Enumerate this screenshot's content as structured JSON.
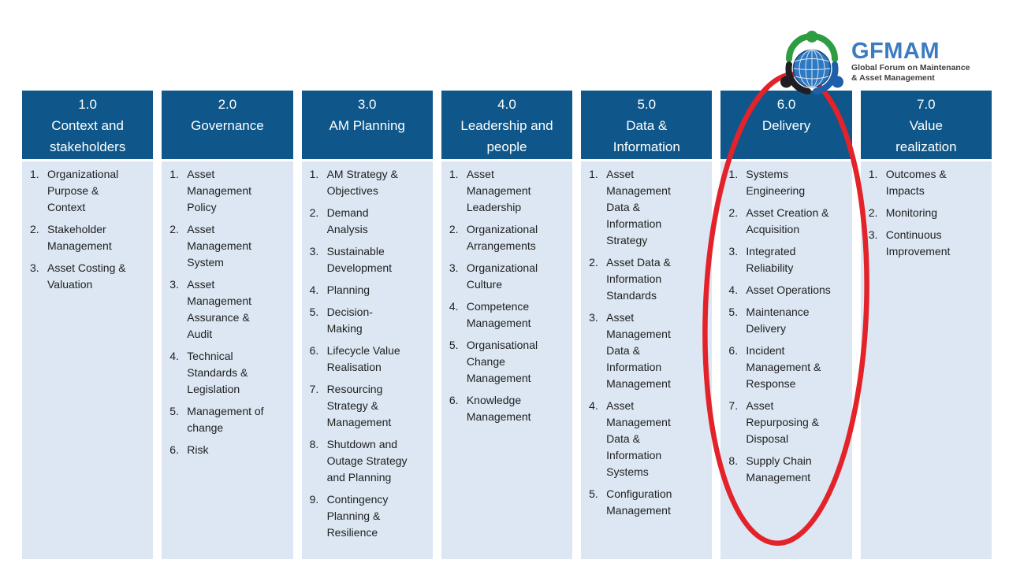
{
  "colors": {
    "header_bg": "#0F578A",
    "body_bg": "#DCE7F3",
    "header_text": "#FFFFFF",
    "item_text": "#1F1F1F",
    "annotation_red": "#E3222A",
    "brand_blue": "#3B7CC0",
    "tagline_gray": "#3F3F42",
    "globe_blue": "#2F78C2",
    "figure_green": "#2E9C41",
    "figure_dark": "#1F1F23",
    "figure_blue": "#1D5FA9"
  },
  "logo": {
    "brand": "GFMAM",
    "tagline_lines": [
      "Global Forum on Maintenance",
      "& Asset Management"
    ]
  },
  "annotation": {
    "shape": "ellipse",
    "circled_section": "6.0 Delivery"
  },
  "framework": {
    "sections": [
      {
        "number": "1.0",
        "title_lines": [
          "Context and",
          "stakeholders"
        ],
        "items": [
          {
            "num": "1.",
            "lines": [
              "Organizational",
              "Purpose &",
              "Context"
            ]
          },
          {
            "num": "2.",
            "lines": [
              "Stakeholder",
              "Management"
            ]
          },
          {
            "num": "3.",
            "lines": [
              "Asset Costing &",
              "Valuation"
            ]
          }
        ]
      },
      {
        "number": "2.0",
        "title_lines": [
          "Governance"
        ],
        "items": [
          {
            "num": "1.",
            "lines": [
              "Asset",
              "Management",
              "Policy"
            ]
          },
          {
            "num": "2.",
            "lines": [
              "Asset",
              "Management",
              "System"
            ]
          },
          {
            "num": "3.",
            "lines": [
              "Asset",
              "Management",
              "Assurance &",
              "Audit"
            ]
          },
          {
            "num": "4.",
            "lines": [
              "Technical",
              "Standards &",
              "Legislation"
            ]
          },
          {
            "num": "5.",
            "lines": [
              "Management of",
              "change"
            ]
          },
          {
            "num": "6.",
            "lines": [
              "Risk"
            ]
          }
        ]
      },
      {
        "number": "3.0",
        "title_lines": [
          "AM Planning"
        ],
        "items": [
          {
            "num": "1.",
            "lines": [
              "AM Strategy &",
              "Objectives"
            ]
          },
          {
            "num": "2.",
            "lines": [
              "Demand",
              "Analysis"
            ]
          },
          {
            "num": "3.",
            "lines": [
              "Sustainable",
              "Development"
            ]
          },
          {
            "num": "4.",
            "lines": [
              "Planning"
            ]
          },
          {
            "num": "5.",
            "lines": [
              "Decision-",
              "Making"
            ]
          },
          {
            "num": "6.",
            "lines": [
              "Lifecycle Value",
              "Realisation"
            ]
          },
          {
            "num": "7.",
            "lines": [
              "Resourcing",
              "Strategy &",
              "Management"
            ]
          },
          {
            "num": "8.",
            "lines": [
              "Shutdown and",
              "Outage Strategy",
              "and Planning"
            ]
          },
          {
            "num": "9.",
            "lines": [
              "Contingency",
              "Planning &",
              "Resilience"
            ]
          }
        ]
      },
      {
        "number": "4.0",
        "title_lines": [
          "Leadership and",
          "people"
        ],
        "items": [
          {
            "num": "1.",
            "lines": [
              "Asset",
              "Management",
              "Leadership"
            ]
          },
          {
            "num": "2.",
            "lines": [
              "Organizational",
              "Arrangements"
            ]
          },
          {
            "num": "3.",
            "lines": [
              "Organizational",
              "Culture"
            ]
          },
          {
            "num": "4.",
            "lines": [
              "Competence",
              "Management"
            ]
          },
          {
            "num": "5.",
            "lines": [
              "Organisational",
              "Change",
              "Management"
            ]
          },
          {
            "num": "6.",
            "lines": [
              "Knowledge",
              "Management"
            ]
          }
        ]
      },
      {
        "number": "5.0",
        "title_lines": [
          "Data &",
          "Information"
        ],
        "items": [
          {
            "num": "1.",
            "lines": [
              "Asset",
              "Management",
              "Data &",
              "Information",
              "Strategy"
            ]
          },
          {
            "num": "2.",
            "lines": [
              "Asset Data &",
              "Information",
              "Standards"
            ]
          },
          {
            "num": "3.",
            "lines": [
              "Asset",
              "Management",
              "Data &",
              "Information",
              "Management"
            ]
          },
          {
            "num": "4.",
            "lines": [
              "Asset",
              "Management",
              "Data &",
              "Information",
              "Systems"
            ]
          },
          {
            "num": "5.",
            "lines": [
              "Configuration",
              "Management"
            ]
          }
        ]
      },
      {
        "number": "6.0",
        "title_lines": [
          "Delivery"
        ],
        "items": [
          {
            "num": "1.",
            "lines": [
              "Systems",
              "Engineering"
            ]
          },
          {
            "num": "2.",
            "lines": [
              "Asset Creation &",
              "Acquisition"
            ]
          },
          {
            "num": "3.",
            "lines": [
              "Integrated",
              "Reliability"
            ]
          },
          {
            "num": "4.",
            "lines": [
              "Asset Operations"
            ]
          },
          {
            "num": "5.",
            "lines": [
              "Maintenance",
              "Delivery"
            ]
          },
          {
            "num": "6.",
            "lines": [
              "Incident",
              "Management &",
              "Response"
            ]
          },
          {
            "num": "7.",
            "lines": [
              "Asset",
              "Repurposing &",
              "Disposal"
            ]
          },
          {
            "num": "8.",
            "lines": [
              "Supply Chain",
              "Management"
            ]
          }
        ]
      },
      {
        "number": "7.0",
        "title_lines": [
          "Value",
          "realization"
        ],
        "items": [
          {
            "num": "1.",
            "lines": [
              "Outcomes &",
              "Impacts"
            ]
          },
          {
            "num": "2.",
            "lines": [
              "Monitoring"
            ]
          },
          {
            "num": "3.",
            "lines": [
              "Continuous",
              "Improvement"
            ]
          }
        ]
      }
    ]
  }
}
